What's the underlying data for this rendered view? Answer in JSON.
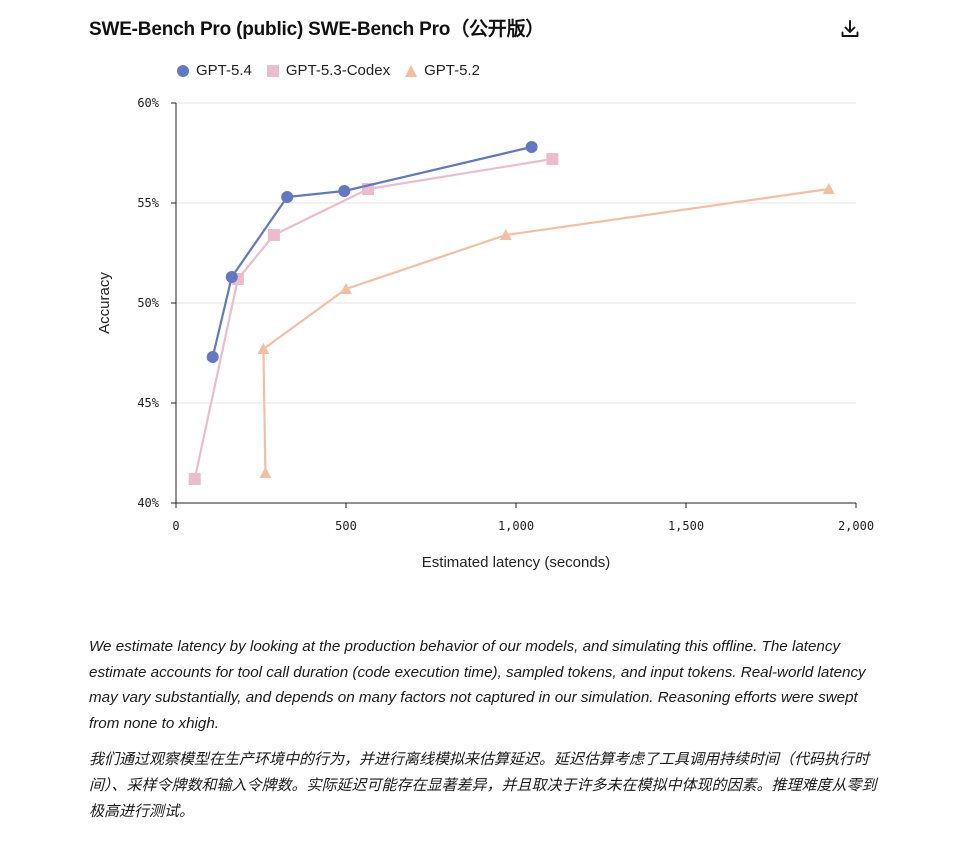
{
  "header": {
    "title": "SWE-Bench Pro (public) SWE-Bench Pro（公开版）",
    "download_icon": "download-icon"
  },
  "chart_data": {
    "type": "line",
    "title": "SWE-Bench Pro (public) SWE-Bench Pro（公开版）",
    "xlabel": "Estimated latency (seconds)",
    "ylabel": "Accuracy",
    "xlim": [
      0,
      2000
    ],
    "ylim": [
      40,
      60
    ],
    "xticks": [
      0,
      500,
      1000,
      1500,
      2000
    ],
    "xtick_labels": [
      "0",
      "500",
      "1,000",
      "1,500",
      "2,000"
    ],
    "yticks": [
      40,
      45,
      50,
      55,
      60
    ],
    "ytick_labels": [
      "40%",
      "45%",
      "50%",
      "55%",
      "60%"
    ],
    "grid": "horizontal",
    "legend_position": "top-left",
    "series": [
      {
        "name": "GPT-5.4",
        "marker": "circle",
        "color": "#6278c0",
        "x": [
          108,
          164,
          327,
          495,
          1046
        ],
        "y": [
          47.3,
          51.3,
          55.3,
          55.6,
          57.8
        ]
      },
      {
        "name": "GPT-5.3-Codex",
        "marker": "square",
        "color": "#ebbccc",
        "x": [
          55,
          182,
          288,
          565,
          1107
        ],
        "y": [
          41.2,
          51.2,
          53.4,
          55.7,
          57.2
        ]
      },
      {
        "name": "GPT-5.2",
        "marker": "triangle",
        "color": "#f3bfa0",
        "x": [
          263,
          257,
          500,
          970,
          1920
        ],
        "y": [
          41.5,
          47.7,
          50.7,
          53.4,
          55.7
        ]
      }
    ]
  },
  "captions": {
    "english": "We estimate latency by looking at the production behavior of our models, and simulating this offline. The latency estimate accounts for tool call duration (code execution time), sampled tokens, and input tokens. Real-world latency may vary substantially, and depends on many factors not captured in our simulation. Reasoning efforts were swept from none to xhigh.",
    "chinese": "我们通过观察模型在生产环境中的行为，并进行离线模拟来估算延迟。延迟估算考虑了工具调用持续时间（代码执行时间）、采样令牌数和输入令牌数。实际延迟可能存在显著差异，并且取决于许多未在模拟中体现的因素。推理难度从零到极高进行测试。"
  }
}
